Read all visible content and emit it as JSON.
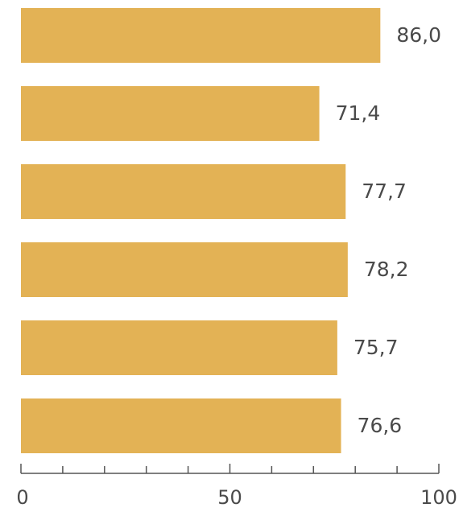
{
  "chart_data": {
    "type": "bar",
    "orientation": "horizontal",
    "values": [
      86.0,
      71.4,
      77.7,
      78.2,
      75.7,
      76.6
    ],
    "value_labels": [
      "86,0",
      "71,4",
      "77,7",
      "78,2",
      "75,7",
      "76,6"
    ],
    "xlim": [
      0,
      100
    ],
    "x_major_ticks": [
      0,
      50,
      100
    ],
    "x_tick_labels": [
      "0",
      "50",
      "100"
    ],
    "x_minor_step": 10,
    "grid": false,
    "colors": {
      "bar": "#e3b255",
      "axis": "#555555",
      "text": "#4a4a4a"
    }
  }
}
